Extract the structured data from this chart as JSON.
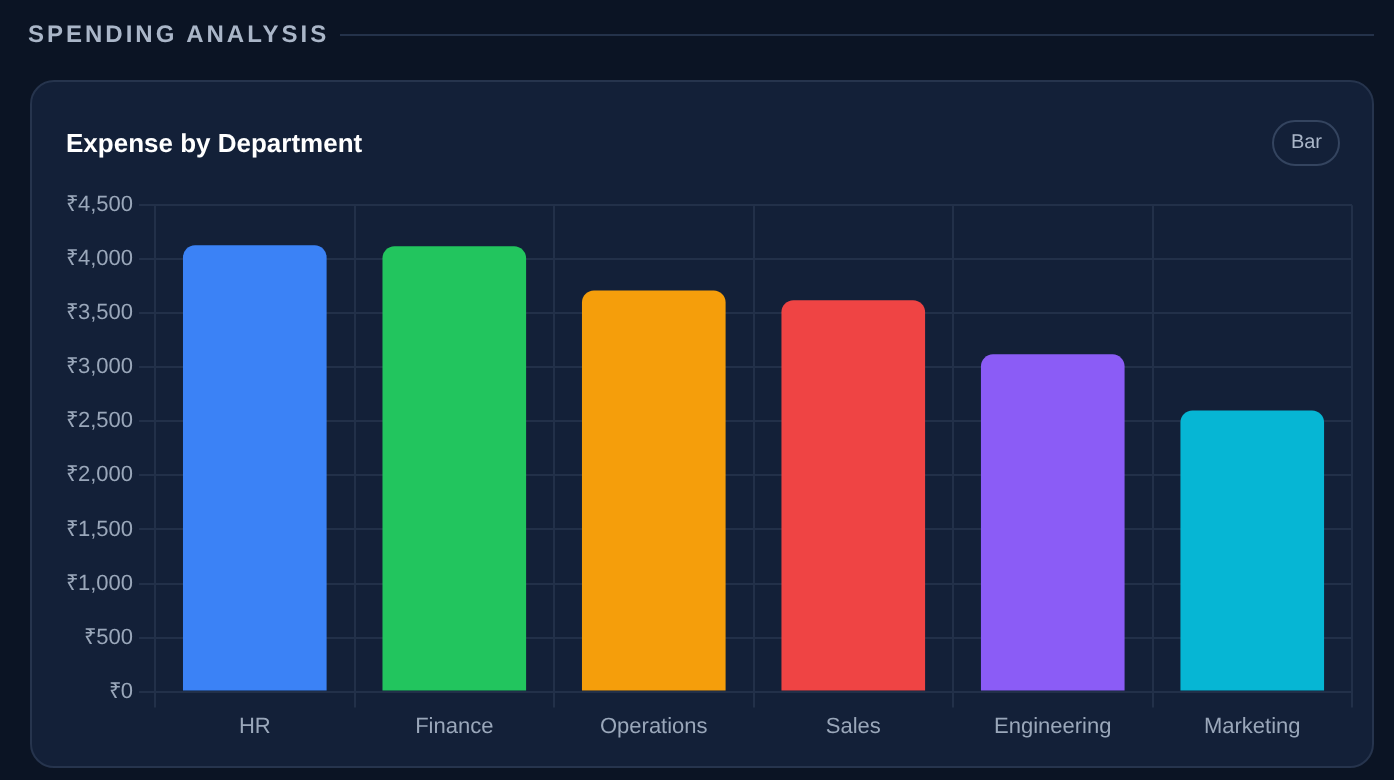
{
  "chart_data": {
    "type": "bar",
    "title": "Expense by Department",
    "subtitle": "SPENDING ANALYSIS",
    "annotations": [
      "Bar"
    ],
    "categories": [
      "HR",
      "Finance",
      "Operations",
      "Sales",
      "Engineering",
      "Marketing"
    ],
    "values": [
      4130,
      4120,
      3710,
      3620,
      3120,
      2600
    ],
    "colors": [
      "#3b82f6",
      "#22c55e",
      "#f59e0b",
      "#ef4444",
      "#8b5cf6",
      "#06b6d4"
    ],
    "ylim": [
      0,
      4500
    ],
    "yticks": [
      {
        "value": 0,
        "label": "₹0"
      },
      {
        "value": 500,
        "label": "₹500"
      },
      {
        "value": 1000,
        "label": "₹1,000"
      },
      {
        "value": 1500,
        "label": "₹1,500"
      },
      {
        "value": 2000,
        "label": "₹2,000"
      },
      {
        "value": 2500,
        "label": "₹2,500"
      },
      {
        "value": 3000,
        "label": "₹3,000"
      },
      {
        "value": 3500,
        "label": "₹3,500"
      },
      {
        "value": 4000,
        "label": "₹4,000"
      },
      {
        "value": 4500,
        "label": "₹4,500"
      }
    ],
    "grid": true
  }
}
